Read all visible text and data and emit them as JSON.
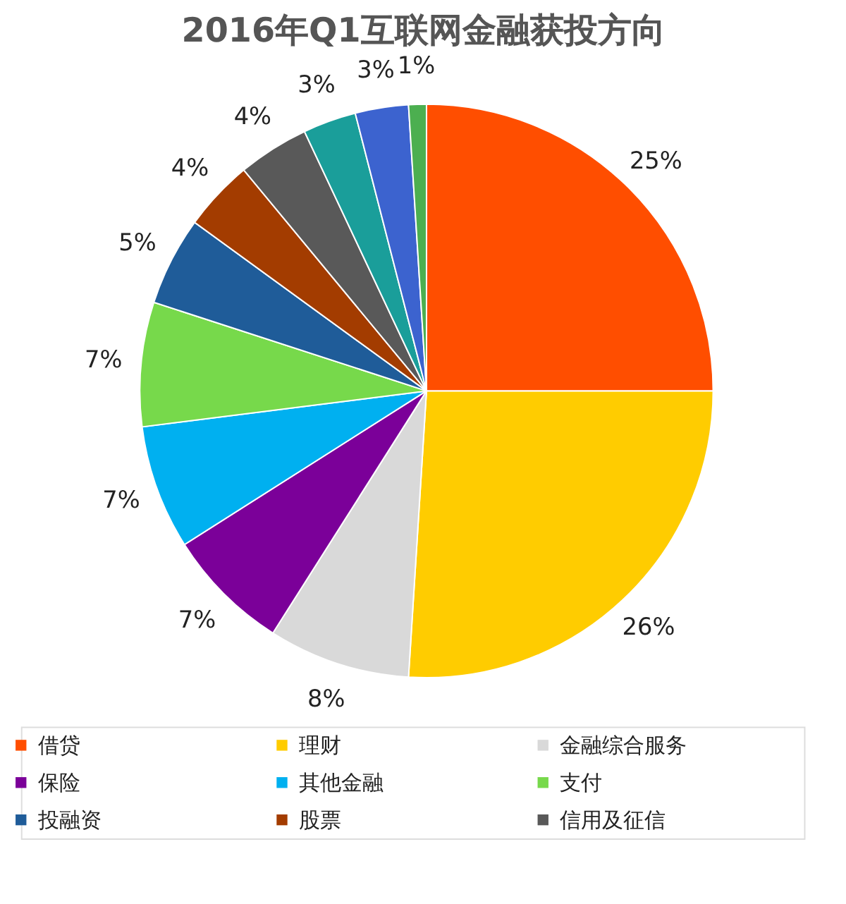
{
  "chart_data": {
    "type": "pie",
    "title": "2016年Q1互联网金融获投方向",
    "categories": [
      "借贷",
      "理财",
      "金融综合服务",
      "保险",
      "其他金融",
      "支付",
      "投融资",
      "股票",
      "信用及征信",
      null,
      null,
      null
    ],
    "values": [
      25,
      26,
      8,
      7,
      7,
      7,
      5,
      4,
      4,
      3,
      3,
      1
    ],
    "value_labels": [
      "25%",
      "26%",
      "8%",
      "7%",
      "7%",
      "7%",
      "5%",
      "4%",
      "4%",
      "3%",
      "3%",
      "1%"
    ],
    "colors": [
      "#ff4e00",
      "#ffcc00",
      "#d9d9d9",
      "#7b0099",
      "#00b0f0",
      "#77d94b",
      "#1f5c99",
      "#a33c00",
      "#595959",
      "#1a9e9a",
      "#3c63cf",
      "#4caf50"
    ],
    "legend": "bottom"
  }
}
